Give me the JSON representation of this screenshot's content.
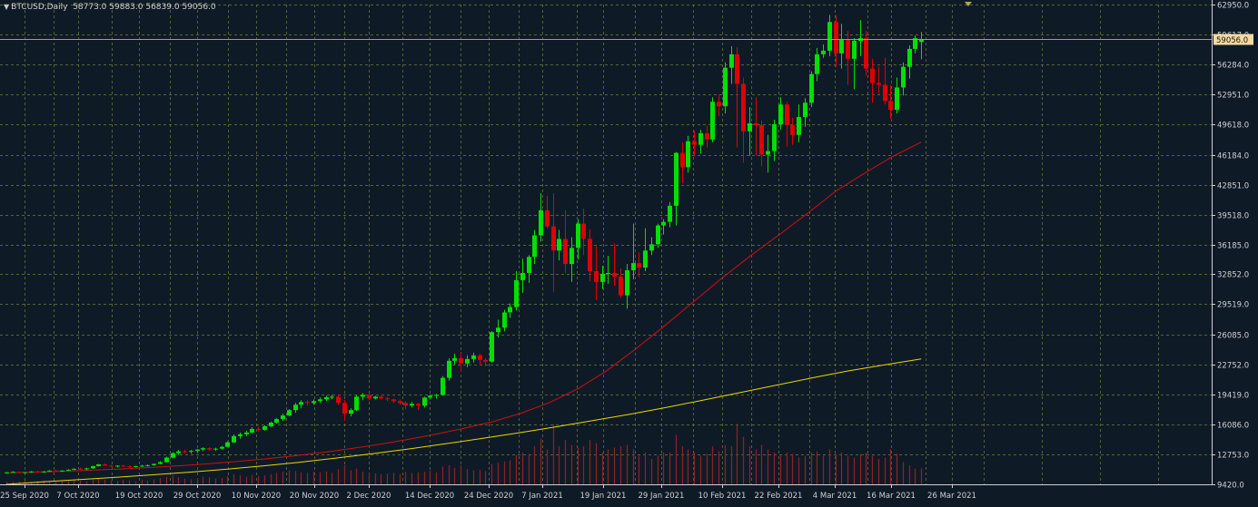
{
  "header": {
    "symbol": "BTCUSD,Daily",
    "ohlc": "58773.0 59883.0 56839.0 59056.0"
  },
  "colors": {
    "background": "#0f1a27",
    "grid": "#6f7f3a",
    "bull": "#00e000",
    "bear": "#e00000",
    "ma_fast": "#cc1111",
    "ma_slow": "#e8d800",
    "volume": "#8a2222",
    "axis_text": "#d0d0d0",
    "price_label_bg": "#f4d9a0"
  },
  "chart_data": {
    "type": "candlestick",
    "symbol": "BTCUSD",
    "timeframe": "Daily",
    "y_ticks": [
      62950.0,
      59617.0,
      56284.0,
      52951.0,
      49618.0,
      46184.0,
      42851.0,
      39518.0,
      36185.0,
      32852.0,
      29519.0,
      26085.0,
      22752.0,
      19419.0,
      16086.0,
      12753.0,
      9420.0
    ],
    "ylim": [
      9420,
      62950
    ],
    "x_labels": [
      "25 Sep 2020",
      "7 Oct 2020",
      "19 Oct 2020",
      "29 Oct 2020",
      "10 Nov 2020",
      "20 Nov 2020",
      "2 Dec 2020",
      "14 Dec 2020",
      "24 Dec 2020",
      "7 Jan 2021",
      "19 Jan 2021",
      "29 Jan 2021",
      "10 Feb 2021",
      "22 Feb 2021",
      "4 Mar 2021",
      "16 Mar 2021",
      "26 Mar 2021"
    ],
    "current_price": "59056.0",
    "candles": [
      [
        10700,
        10800,
        10600,
        10750
      ],
      [
        10750,
        10900,
        10700,
        10800
      ],
      [
        10800,
        10850,
        10650,
        10700
      ],
      [
        10700,
        10800,
        10600,
        10780
      ],
      [
        10780,
        10900,
        10700,
        10850
      ],
      [
        10850,
        10950,
        10750,
        10800
      ],
      [
        10800,
        10900,
        10700,
        10850
      ],
      [
        10850,
        11000,
        10800,
        10950
      ],
      [
        10950,
        11050,
        10850,
        10900
      ],
      [
        10900,
        11000,
        10800,
        10950
      ],
      [
        10950,
        11100,
        10900,
        11050
      ],
      [
        11050,
        11200,
        11000,
        11150
      ],
      [
        11150,
        11300,
        11050,
        11100
      ],
      [
        11100,
        11250,
        11000,
        11200
      ],
      [
        11200,
        11500,
        11150,
        11450
      ],
      [
        11450,
        11700,
        11400,
        11650
      ],
      [
        11650,
        11750,
        11450,
        11500
      ],
      [
        11500,
        11600,
        11350,
        11400
      ],
      [
        11400,
        11550,
        11300,
        11500
      ],
      [
        11500,
        11600,
        11400,
        11450
      ],
      [
        11450,
        11550,
        11350,
        11400
      ],
      [
        11400,
        11500,
        11300,
        11450
      ],
      [
        11450,
        11600,
        11350,
        11500
      ],
      [
        11500,
        11650,
        11400,
        11550
      ],
      [
        11550,
        11750,
        11500,
        11700
      ],
      [
        11700,
        12000,
        11650,
        11900
      ],
      [
        11900,
        12500,
        11850,
        12400
      ],
      [
        12400,
        13000,
        12300,
        12900
      ],
      [
        12900,
        13250,
        12700,
        13100
      ],
      [
        13100,
        13300,
        12900,
        13050
      ],
      [
        13050,
        13250,
        12850,
        13150
      ],
      [
        13150,
        13350,
        13000,
        13300
      ],
      [
        13300,
        13550,
        13100,
        13450
      ],
      [
        13450,
        13550,
        13200,
        13300
      ],
      [
        13300,
        13500,
        13150,
        13400
      ],
      [
        13400,
        13700,
        13300,
        13600
      ],
      [
        13600,
        14200,
        13550,
        14100
      ],
      [
        14100,
        15000,
        14050,
        14800
      ],
      [
        14800,
        15200,
        14500,
        15000
      ],
      [
        15000,
        15400,
        14800,
        15200
      ],
      [
        15200,
        15800,
        15100,
        15600
      ],
      [
        15600,
        15850,
        15300,
        15500
      ],
      [
        15500,
        16000,
        15400,
        15900
      ],
      [
        15900,
        16400,
        15800,
        16300
      ],
      [
        16300,
        16800,
        16200,
        16700
      ],
      [
        16700,
        17300,
        16500,
        17100
      ],
      [
        17100,
        17800,
        17000,
        17700
      ],
      [
        17700,
        18500,
        17400,
        18300
      ],
      [
        18300,
        18800,
        17900,
        18600
      ],
      [
        18600,
        18800,
        18200,
        18500
      ],
      [
        18500,
        18900,
        18300,
        18700
      ],
      [
        18700,
        19100,
        18500,
        18900
      ],
      [
        18900,
        19300,
        18700,
        19150
      ],
      [
        19150,
        19400,
        18900,
        19200
      ],
      [
        19200,
        19450,
        18300,
        18500
      ],
      [
        18500,
        18800,
        16500,
        17300
      ],
      [
        17300,
        17900,
        17000,
        17700
      ],
      [
        17700,
        19400,
        17600,
        19200
      ],
      [
        19200,
        19600,
        18800,
        19400
      ],
      [
        19400,
        19500,
        18800,
        19000
      ],
      [
        19000,
        19300,
        18900,
        19200
      ],
      [
        19200,
        19350,
        18900,
        19000
      ],
      [
        19000,
        19200,
        18700,
        18900
      ],
      [
        18900,
        19000,
        18500,
        18700
      ],
      [
        18700,
        18900,
        18300,
        18500
      ],
      [
        18500,
        18700,
        17800,
        18200
      ],
      [
        18200,
        18600,
        18000,
        18400
      ],
      [
        18400,
        18500,
        17700,
        18200
      ],
      [
        18200,
        19200,
        18000,
        19100
      ],
      [
        19100,
        19400,
        18900,
        19300
      ],
      [
        19300,
        19500,
        19000,
        19400
      ],
      [
        19400,
        21500,
        19300,
        21300
      ],
      [
        21300,
        23500,
        21000,
        23200
      ],
      [
        23200,
        24000,
        22800,
        23500
      ],
      [
        23500,
        24200,
        22000,
        22900
      ],
      [
        22900,
        23800,
        22500,
        23400
      ],
      [
        23400,
        24100,
        23000,
        23800
      ],
      [
        23800,
        24000,
        22700,
        23300
      ],
      [
        23300,
        23500,
        22600,
        23100
      ],
      [
        23100,
        26500,
        23000,
        26400
      ],
      [
        26400,
        27800,
        25800,
        26900
      ],
      [
        26900,
        28900,
        26500,
        28600
      ],
      [
        28600,
        29600,
        28000,
        29200
      ],
      [
        29200,
        33200,
        28800,
        32200
      ],
      [
        32200,
        34600,
        30800,
        33000
      ],
      [
        33000,
        35000,
        31900,
        34800
      ],
      [
        34800,
        37800,
        34000,
        37200
      ],
      [
        37200,
        41900,
        36500,
        40000
      ],
      [
        40000,
        41600,
        38000,
        38200
      ],
      [
        38200,
        41900,
        30900,
        35500
      ],
      [
        35500,
        37800,
        34400,
        36800
      ],
      [
        36800,
        40000,
        33000,
        34000
      ],
      [
        34000,
        37000,
        32000,
        35800
      ],
      [
        35800,
        39000,
        34500,
        38500
      ],
      [
        38500,
        40200,
        35000,
        36800
      ],
      [
        36800,
        37900,
        32100,
        33200
      ],
      [
        33200,
        36000,
        30000,
        32000
      ],
      [
        32000,
        33800,
        31200,
        32900
      ],
      [
        32900,
        34900,
        31800,
        33000
      ],
      [
        33000,
        36300,
        31600,
        32600
      ],
      [
        32600,
        33500,
        30200,
        30500
      ],
      [
        30500,
        34000,
        29000,
        33300
      ],
      [
        33300,
        38500,
        32300,
        34100
      ],
      [
        34100,
        35300,
        32500,
        33600
      ],
      [
        33600,
        38000,
        33200,
        35500
      ],
      [
        35500,
        37000,
        35000,
        36200
      ],
      [
        36200,
        38500,
        35800,
        38300
      ],
      [
        38300,
        39000,
        37300,
        38700
      ],
      [
        38700,
        40900,
        38100,
        40500
      ],
      [
        40500,
        46500,
        38300,
        46400
      ],
      [
        46400,
        47600,
        43000,
        44800
      ],
      [
        44800,
        48300,
        44200,
        47700
      ],
      [
        47700,
        48900,
        46000,
        47300
      ],
      [
        47300,
        49000,
        46300,
        48600
      ],
      [
        48600,
        49400,
        47000,
        47900
      ],
      [
        47900,
        52600,
        47600,
        52100
      ],
      [
        52100,
        52900,
        50500,
        51600
      ],
      [
        51600,
        56500,
        50800,
        55900
      ],
      [
        55900,
        58300,
        54100,
        57400
      ],
      [
        57400,
        58200,
        47000,
        54100
      ],
      [
        54100,
        54800,
        45300,
        48800
      ],
      [
        48800,
        51500,
        46100,
        49700
      ],
      [
        49700,
        52600,
        46100,
        49500
      ],
      [
        49500,
        50000,
        44900,
        46200
      ],
      [
        46200,
        48400,
        44200,
        46600
      ],
      [
        46600,
        50100,
        45500,
        49600
      ],
      [
        49600,
        52600,
        49000,
        51800
      ],
      [
        51800,
        52100,
        47100,
        49500
      ],
      [
        49500,
        50300,
        47300,
        48400
      ],
      [
        48400,
        51800,
        47600,
        50400
      ],
      [
        50400,
        52500,
        49300,
        52000
      ],
      [
        52000,
        55500,
        51500,
        55200
      ],
      [
        55200,
        58100,
        54400,
        57400
      ],
      [
        57400,
        58500,
        57000,
        57800
      ],
      [
        57800,
        61800,
        57200,
        61000
      ],
      [
        61000,
        61800,
        56000,
        57500
      ],
      [
        57500,
        60800,
        55800,
        59000
      ],
      [
        59000,
        60000,
        54000,
        56900
      ],
      [
        56900,
        59200,
        53500,
        58900
      ],
      [
        58900,
        61200,
        57200,
        59200
      ],
      [
        59200,
        60000,
        55000,
        55800
      ],
      [
        55800,
        56900,
        52000,
        54200
      ],
      [
        54200,
        56000,
        53000,
        54000
      ],
      [
        54000,
        57000,
        51800,
        52200
      ],
      [
        52200,
        54000,
        50200,
        51200
      ],
      [
        51200,
        54800,
        50800,
        53700
      ],
      [
        53700,
        56500,
        52800,
        56000
      ],
      [
        56000,
        58400,
        54700,
        58000
      ],
      [
        58000,
        59500,
        57500,
        59200
      ],
      [
        58773,
        59883,
        56839,
        59056
      ]
    ],
    "ma_fast": {
      "start_index": 0,
      "values": [
        10700,
        10780,
        10880,
        10995,
        11130,
        11290,
        11480,
        11700,
        11950,
        12240,
        12570,
        12950,
        13380,
        13860,
        14400,
        15000,
        15660,
        16400,
        17350,
        18550,
        20100,
        22100,
        24500,
        27050,
        29700,
        32350,
        34850,
        37200,
        39600,
        42100,
        44100,
        46000,
        47600
      ]
    },
    "ma_slow": {
      "start_index": 0,
      "values": [
        9420,
        9700,
        9950,
        10200,
        10480,
        10780,
        11100,
        11470,
        11880,
        12340,
        12840,
        13370,
        13940,
        14540,
        15170,
        15830,
        16510,
        17210,
        17970,
        18780,
        19620,
        20450,
        21280,
        22070,
        22750,
        23400
      ]
    },
    "volume": [
      0.04,
      0.05,
      0.04,
      0.06,
      0.04,
      0.05,
      0.06,
      0.05,
      0.04,
      0.06,
      0.05,
      0.07,
      0.06,
      0.05,
      0.08,
      0.09,
      0.07,
      0.06,
      0.05,
      0.07,
      0.06,
      0.05,
      0.07,
      0.06,
      0.08,
      0.1,
      0.12,
      0.14,
      0.11,
      0.09,
      0.08,
      0.1,
      0.12,
      0.11,
      0.09,
      0.1,
      0.13,
      0.16,
      0.14,
      0.12,
      0.15,
      0.13,
      0.14,
      0.16,
      0.18,
      0.2,
      0.22,
      0.21,
      0.19,
      0.18,
      0.2,
      0.19,
      0.2,
      0.18,
      0.24,
      0.3,
      0.22,
      0.25,
      0.2,
      0.18,
      0.17,
      0.16,
      0.17,
      0.18,
      0.16,
      0.2,
      0.18,
      0.19,
      0.2,
      0.21,
      0.19,
      0.28,
      0.3,
      0.26,
      0.3,
      0.24,
      0.22,
      0.23,
      0.21,
      0.32,
      0.34,
      0.36,
      0.38,
      0.46,
      0.5,
      0.48,
      0.6,
      0.72,
      0.55,
      0.95,
      0.6,
      0.7,
      0.62,
      0.58,
      0.6,
      0.7,
      0.65,
      0.5,
      0.55,
      0.58,
      0.6,
      0.62,
      0.55,
      0.45,
      0.5,
      0.4,
      0.45,
      0.5,
      0.5,
      0.78,
      0.6,
      0.55,
      0.5,
      0.45,
      0.48,
      0.6,
      0.52,
      0.62,
      0.6,
      0.95,
      0.75,
      0.6,
      0.55,
      0.62,
      0.55,
      0.5,
      0.45,
      0.5,
      0.48,
      0.42,
      0.45,
      0.5,
      0.52,
      0.45,
      0.55,
      0.48,
      0.5,
      0.45,
      0.42,
      0.48,
      0.5,
      0.45,
      0.4,
      0.42,
      0.55,
      0.48,
      0.35,
      0.3,
      0.25,
      0.25
    ]
  }
}
